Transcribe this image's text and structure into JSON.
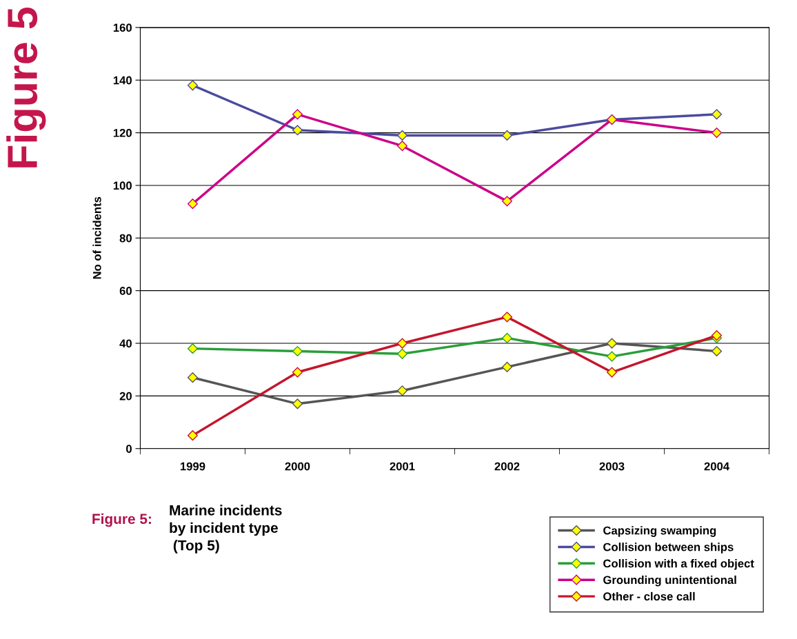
{
  "chart_data": {
    "type": "line",
    "ylabel": "No of incidents",
    "categories": [
      "1999",
      "2000",
      "2001",
      "2002",
      "2003",
      "2004"
    ],
    "series": [
      {
        "name": "Capsizing swamping",
        "color": "#555555",
        "values": [
          27,
          17,
          22,
          31,
          40,
          37
        ]
      },
      {
        "name": "Collision between ships",
        "color": "#4b4b9e",
        "values": [
          138,
          121,
          119,
          119,
          125,
          127
        ]
      },
      {
        "name": "Collision with a fixed object",
        "color": "#2a9e3a",
        "values": [
          38,
          37,
          36,
          42,
          35,
          42
        ]
      },
      {
        "name": "Grounding unintentional",
        "color": "#cc0088",
        "values": [
          93,
          127,
          115,
          94,
          125,
          120
        ]
      },
      {
        "name": "Other - close call",
        "color": "#c4162c",
        "values": [
          5,
          29,
          40,
          50,
          29,
          43
        ]
      }
    ],
    "ylim": [
      0,
      160
    ],
    "yticks": [
      0,
      20,
      40,
      60,
      80,
      100,
      120,
      140,
      160
    ],
    "grid": "y",
    "legend": "bottom right",
    "marker": "diamond",
    "line_style": "solid",
    "annotations": [
      "Figure 5",
      "Figure 5:",
      "Marine incidents\nby incident type\n (Top 5)"
    ]
  }
}
